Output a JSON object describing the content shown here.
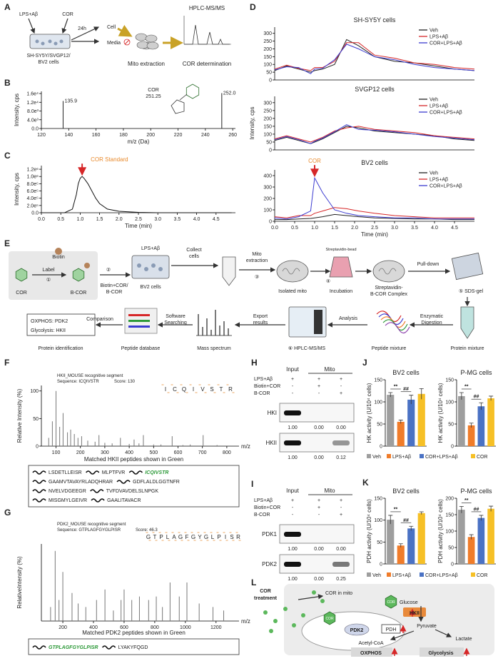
{
  "chart_data": [
    {
      "type": "spectrum",
      "xlabel": "m/z (Da)",
      "ylabel": "Intensity, cps",
      "xlim": [
        120,
        262
      ],
      "xticks": [
        120,
        140,
        160,
        180,
        200,
        220,
        240,
        260
      ],
      "ylim": [
        0,
        17000
      ],
      "yticks": [
        {
          "value": 0,
          "label": "0.0"
        },
        {
          "value": 4000,
          "label": "4.0e³"
        },
        {
          "value": 8000,
          "label": "8.0e³"
        },
        {
          "value": 12000,
          "label": "1.2e⁴"
        },
        {
          "value": 16000,
          "label": "1.6e⁴"
        }
      ],
      "x": [
        135.9,
        252.0
      ],
      "values": [
        12600,
        16200
      ],
      "peak_labels": [
        "135.9",
        "252.0"
      ],
      "annotations": [
        "COR",
        "251.25"
      ],
      "color": "#222222"
    },
    {
      "type": "line",
      "xlabel": "Time (min)",
      "ylabel": "Intensity, cps",
      "xlim": [
        0,
        5
      ],
      "xticks": [
        {
          "value": 0,
          "label": "0.0"
        },
        0.5,
        {
          "value": 1,
          "label": "1.0"
        },
        1.5,
        {
          "value": 2,
          "label": "2.0"
        },
        2.5,
        {
          "value": 3,
          "label": "3.0"
        },
        3.5,
        {
          "value": 4,
          "label": "4.0"
        },
        4.5
      ],
      "ylim": [
        0,
        1300000
      ],
      "yticks": [
        {
          "value": 0,
          "label": "0.0"
        },
        {
          "value": 200000,
          "label": "2.0e⁵"
        },
        {
          "value": 400000,
          "label": "4.0e⁵"
        },
        {
          "value": 600000,
          "label": "6.0e⁵"
        },
        {
          "value": 800000,
          "label": "8.0e⁵"
        },
        {
          "value": 1000000,
          "label": "1.0e⁶"
        },
        {
          "value": 1200000,
          "label": "1.2e⁶"
        }
      ],
      "x": [
        0,
        0.6,
        0.8,
        0.9,
        0.95,
        1.0,
        1.05,
        1.1,
        1.2,
        1.3,
        1.4,
        1.5,
        1.7,
        2.0,
        2.5,
        3.0,
        4.5,
        4.9
      ],
      "values": [
        0,
        0,
        100000,
        500000,
        800000,
        950000,
        1000000,
        950000,
        800000,
        600000,
        400000,
        250000,
        100000,
        40000,
        10000,
        0,
        0,
        0
      ],
      "color": "#111111",
      "annotations": [
        "COR Standard"
      ]
    },
    {
      "type": "line",
      "title": "SH-SY5Y cells",
      "xlim": [
        0,
        5
      ],
      "ylim": [
        0,
        340
      ],
      "yticks": [
        0,
        50,
        100,
        150,
        200,
        250,
        300
      ],
      "x": [
        0,
        0.3,
        0.6,
        0.9,
        1.0,
        1.2,
        1.5,
        1.8,
        2.1,
        2.5,
        3.0,
        3.5,
        4.0,
        4.5,
        5.0
      ],
      "series": [
        {
          "name": "Veh",
          "color": "#222222",
          "values": [
            60,
            90,
            70,
            50,
            60,
            70,
            100,
            260,
            220,
            150,
            120,
            110,
            90,
            70,
            60
          ]
        },
        {
          "name": "LPS+Aβ",
          "color": "#d62728",
          "values": [
            70,
            95,
            75,
            60,
            80,
            80,
            120,
            240,
            240,
            160,
            140,
            110,
            100,
            80,
            70
          ]
        },
        {
          "name": "COR+LPS+Aβ",
          "color": "#3b3bd0",
          "values": [
            65,
            85,
            80,
            40,
            70,
            75,
            130,
            230,
            200,
            150,
            130,
            100,
            80,
            70,
            60
          ]
        }
      ]
    },
    {
      "type": "line",
      "title": "SVGP12 cells",
      "ylabel": "Intensity, cps",
      "xlim": [
        0,
        5
      ],
      "ylim": [
        0,
        340
      ],
      "yticks": [
        0,
        50,
        100,
        150,
        200,
        250,
        300
      ],
      "x": [
        0,
        0.3,
        0.6,
        0.9,
        1.0,
        1.2,
        1.5,
        1.8,
        2.1,
        2.5,
        3.0,
        3.5,
        4.0,
        4.5,
        5.0
      ],
      "series": [
        {
          "name": "Veh",
          "color": "#222222",
          "values": [
            60,
            80,
            60,
            40,
            50,
            70,
            110,
            150,
            140,
            120,
            110,
            100,
            90,
            70,
            60
          ]
        },
        {
          "name": "LPS+Aβ",
          "color": "#d62728",
          "values": [
            70,
            90,
            70,
            50,
            60,
            80,
            120,
            140,
            150,
            130,
            120,
            110,
            90,
            80,
            70
          ]
        },
        {
          "name": "COR+LPS+Aβ",
          "color": "#3b3bd0",
          "values": [
            65,
            85,
            65,
            40,
            55,
            75,
            115,
            160,
            130,
            125,
            115,
            100,
            85,
            75,
            65
          ]
        }
      ]
    },
    {
      "type": "line",
      "title": "BV2 cells",
      "xlabel": "Time (min)",
      "xlim": [
        0,
        5
      ],
      "xticks": [
        {
          "value": 0,
          "label": "0.0"
        },
        0.5,
        {
          "value": 1,
          "label": "1.0"
        },
        1.5,
        {
          "value": 2,
          "label": "2.0"
        },
        2.5,
        {
          "value": 3,
          "label": "3.0"
        },
        3.5,
        {
          "value": 4,
          "label": "4.0"
        },
        4.5
      ],
      "ylim": [
        0,
        450
      ],
      "yticks": [
        0,
        100,
        200,
        300,
        400
      ],
      "x": [
        0,
        0.3,
        0.6,
        0.9,
        1.0,
        1.2,
        1.5,
        1.8,
        2.1,
        2.5,
        3.0,
        3.5,
        4.0,
        4.5,
        5.0
      ],
      "annotations": [
        "COR"
      ],
      "series": [
        {
          "name": "Veh",
          "color": "#222222",
          "values": [
            15,
            15,
            20,
            25,
            30,
            40,
            60,
            50,
            40,
            30,
            25,
            20,
            20,
            15,
            15
          ]
        },
        {
          "name": "LPS+Aβ",
          "color": "#d62728",
          "values": [
            40,
            30,
            50,
            50,
            70,
            90,
            120,
            110,
            90,
            70,
            50,
            40,
            30,
            30,
            30
          ]
        },
        {
          "name": "COR+LPS+Aβ",
          "color": "#3b3bd0",
          "values": [
            30,
            20,
            40,
            90,
            380,
            250,
            100,
            70,
            50,
            40,
            30,
            30,
            20,
            20,
            20
          ]
        }
      ]
    },
    {
      "type": "spectrum",
      "xlabel": "m/z",
      "ylabel": "Relative Intensity (%)",
      "xlim": [
        40,
        850
      ],
      "xticks": [
        100,
        200,
        300,
        400,
        500,
        600,
        700,
        800
      ],
      "ylim": [
        0,
        110
      ],
      "yticks": [
        0,
        50,
        100
      ],
      "color": "#777777",
      "x": [
        70,
        85,
        100,
        115,
        129,
        147,
        160,
        175,
        190,
        205,
        230,
        260,
        276,
        300,
        330,
        364,
        400,
        420,
        440,
        458,
        500,
        530,
        576,
        620,
        650,
        703,
        760
      ],
      "values": [
        15,
        45,
        100,
        35,
        60,
        25,
        30,
        22,
        15,
        18,
        10,
        8,
        20,
        6,
        5,
        15,
        4,
        12,
        5,
        20,
        3,
        3,
        18,
        2,
        3,
        20,
        2
      ]
    },
    {
      "type": "spectrum",
      "xlabel": "m/z",
      "ylabel": "RelativeIntensity (%)",
      "xlim": [
        60,
        1350
      ],
      "xticks": [
        200,
        400,
        600,
        800,
        1000,
        1200
      ],
      "ylim": [
        0,
        110
      ],
      "color": "#777777",
      "x": [
        120,
        150,
        175,
        200,
        260,
        300,
        350,
        420,
        475,
        530,
        580,
        600,
        650,
        700,
        760,
        810,
        850,
        900,
        960,
        1010,
        1090,
        1180,
        1250
      ],
      "values": [
        20,
        100,
        30,
        70,
        40,
        25,
        20,
        30,
        45,
        15,
        30,
        45,
        30,
        35,
        30,
        35,
        20,
        55,
        35,
        55,
        25,
        20,
        15
      ]
    },
    {
      "type": "bar",
      "title": "BV2 cells",
      "ylabel": "HK activity (U/10⁴ cells)",
      "categories": [
        "Veh",
        "LPS+Aβ",
        "COR+LPS+Aβ",
        "COR"
      ],
      "colors": [
        "#9e9e9e",
        "#f07c2a",
        "#4a72c4",
        "#f6c026"
      ],
      "ylim": [
        0,
        150
      ],
      "yticks": [
        0,
        50,
        100,
        150
      ],
      "values": [
        116,
        55,
        105,
        118
      ],
      "errors": [
        5,
        4,
        10,
        12
      ],
      "annotations": [
        "**",
        "##"
      ]
    },
    {
      "type": "bar",
      "title": "P-MG cells",
      "ylabel": "HK activity (U/10⁴ cells)",
      "colors": [
        "#9e9e9e",
        "#f07c2a",
        "#4a72c4",
        "#f6c026"
      ],
      "ylim": [
        0,
        150
      ],
      "yticks": [
        0,
        50,
        100,
        150
      ],
      "values": [
        113,
        47,
        90,
        108
      ],
      "errors": [
        8,
        5,
        8,
        5
      ],
      "annotations": [
        "**",
        "##"
      ]
    },
    {
      "type": "bar",
      "title": "BV2 cells",
      "ylabel": "PDH activity (U/10⁴ cells)",
      "categories": [
        "Veh",
        "LPS+Aβ",
        "COR+LPS+Aβ",
        "COR"
      ],
      "colors": [
        "#9e9e9e",
        "#f07c2a",
        "#4a72c4",
        "#f6c026"
      ],
      "ylim": [
        0,
        150
      ],
      "yticks": [
        0,
        50,
        100,
        150
      ],
      "values": [
        101,
        42,
        81,
        116
      ],
      "errors": [
        10,
        4,
        5,
        3
      ],
      "annotations": [
        "**",
        "##"
      ]
    },
    {
      "type": "bar",
      "title": "P-MG cells",
      "ylabel": "PDH activity (U/10⁴ cells)",
      "colors": [
        "#9e9e9e",
        "#f07c2a",
        "#4a72c4",
        "#f6c026"
      ],
      "ylim": [
        0,
        200
      ],
      "yticks": [
        0,
        50,
        100,
        150,
        200
      ],
      "values": [
        165,
        82,
        140,
        168
      ],
      "errors": [
        10,
        7,
        8,
        8
      ],
      "annotations": [
        "**",
        "##"
      ]
    }
  ],
  "panels": {
    "A": {
      "label": "A",
      "texts": [
        "LPS+Aβ",
        "COR",
        "24h",
        "Cell",
        "Media",
        "SH-SY5Y/SVGP12/",
        "BV2 cells",
        "Mito extraction",
        "HPLC-MS/MS",
        "COR determination"
      ]
    },
    "B": {
      "label": "B"
    },
    "C": {
      "label": "C"
    },
    "D": {
      "label": "D"
    },
    "E": {
      "label": "E",
      "texts": [
        "Biotin",
        "Label",
        "①",
        "COR",
        "B-COR",
        "②",
        "Biotin+COR/",
        "B-COR",
        "LPS+Aβ",
        "BV2 cells",
        "Collect",
        "cells",
        "Mito",
        "extraction",
        "③",
        "Isolated mito",
        "Streptavidin-bead",
        "④",
        "Incubation",
        "Streptavidin-",
        "B-COR Complex",
        "Pull-down",
        "⑤ SDS-gel",
        "Enzymatic",
        "Digestion",
        "Protein mixture",
        "Peptide mixture",
        "Analysis",
        "⑥ HPLC-MS/MS",
        "Export",
        "results",
        "Mass spectrum",
        "Software",
        "Searching",
        "Peptide database",
        "Comparison",
        "OXPHOS: PDK2",
        "Glycolysis: HKII",
        "Protein identification"
      ]
    },
    "F": {
      "label": "F",
      "header": [
        "HKII_MOUSE recognitive segment",
        "Sequence: ICQIVSTR",
        "Score: 130"
      ],
      "sequence": [
        "I",
        "C",
        "Q",
        "I",
        "V",
        "S",
        "T",
        "R"
      ],
      "matched_title": "Matched HKII peptides shown in Green",
      "peptides": [
        [
          "LSDETLLEISR",
          "MLPTFVR",
          "ICQIVSTR"
        ],
        [
          "GAAMVTAVAYRLADQHRAR",
          "GDFLALDLGGTNFR"
        ],
        [
          "NVELVDGEEGR",
          "TVFDVAVDELSLNPGK"
        ],
        [
          "MISGMYLGEIVR",
          "GAALITAVACR"
        ]
      ],
      "highlight": [
        [
          0,
          2
        ]
      ]
    },
    "G": {
      "label": "G",
      "header": [
        "PDK2_MOUSE recognitive segment",
        "Sequence: GTPLAGFGYGLPISR",
        "Score: 46.3"
      ],
      "sequence": [
        "G",
        "T",
        "P",
        "L",
        "A",
        "G",
        "F",
        "G",
        "Y",
        "G",
        "L",
        "P",
        "I",
        "S",
        "R"
      ],
      "matched_title": "Matched PDK2 peptides shown in Green",
      "peptides": [
        [
          "GTPLAGFGYGLPISR",
          "LYAKYFQGD"
        ]
      ],
      "highlight": [
        [
          0,
          0
        ]
      ]
    },
    "H": {
      "label": "H",
      "columns": [
        "Input",
        "Mito"
      ],
      "treatments": [
        "LPS+Aβ",
        "Biotin+COR",
        "B-COR"
      ],
      "signs": [
        [
          "+",
          "+",
          "+"
        ],
        [
          "-",
          "+",
          "-"
        ],
        [
          "-",
          "-",
          "+"
        ]
      ],
      "blots": [
        {
          "name": "HKI",
          "values": [
            "1.00",
            "0.00",
            "0.00"
          ]
        },
        {
          "name": "HKII",
          "values": [
            "1.00",
            "0.00",
            "0.12"
          ]
        }
      ]
    },
    "I": {
      "label": "I",
      "columns": [
        "Input",
        "Mito"
      ],
      "treatments": [
        "LPS+Aβ",
        "Biotin+COR",
        "B-COR"
      ],
      "signs": [
        [
          "+",
          "+",
          "+"
        ],
        [
          "-",
          "+",
          "-"
        ],
        [
          "-",
          "-",
          "+"
        ]
      ],
      "blots": [
        {
          "name": "PDK1",
          "values": [
            "1.00",
            "0.00",
            "0.00"
          ]
        },
        {
          "name": "PDK2",
          "values": [
            "1.00",
            "0.00",
            "0.25"
          ]
        }
      ]
    },
    "J": {
      "label": "J"
    },
    "K": {
      "label": "K"
    },
    "L": {
      "label": "L",
      "texts": [
        "COR",
        "treatment",
        "COR in mito",
        "COR",
        "Glucose",
        "HKII",
        "Pyruvate",
        "COR",
        "PDK2",
        "PDH",
        "Acetyl-CoA",
        "Lactate",
        "OXPHOS",
        "Glycolysis"
      ]
    }
  }
}
